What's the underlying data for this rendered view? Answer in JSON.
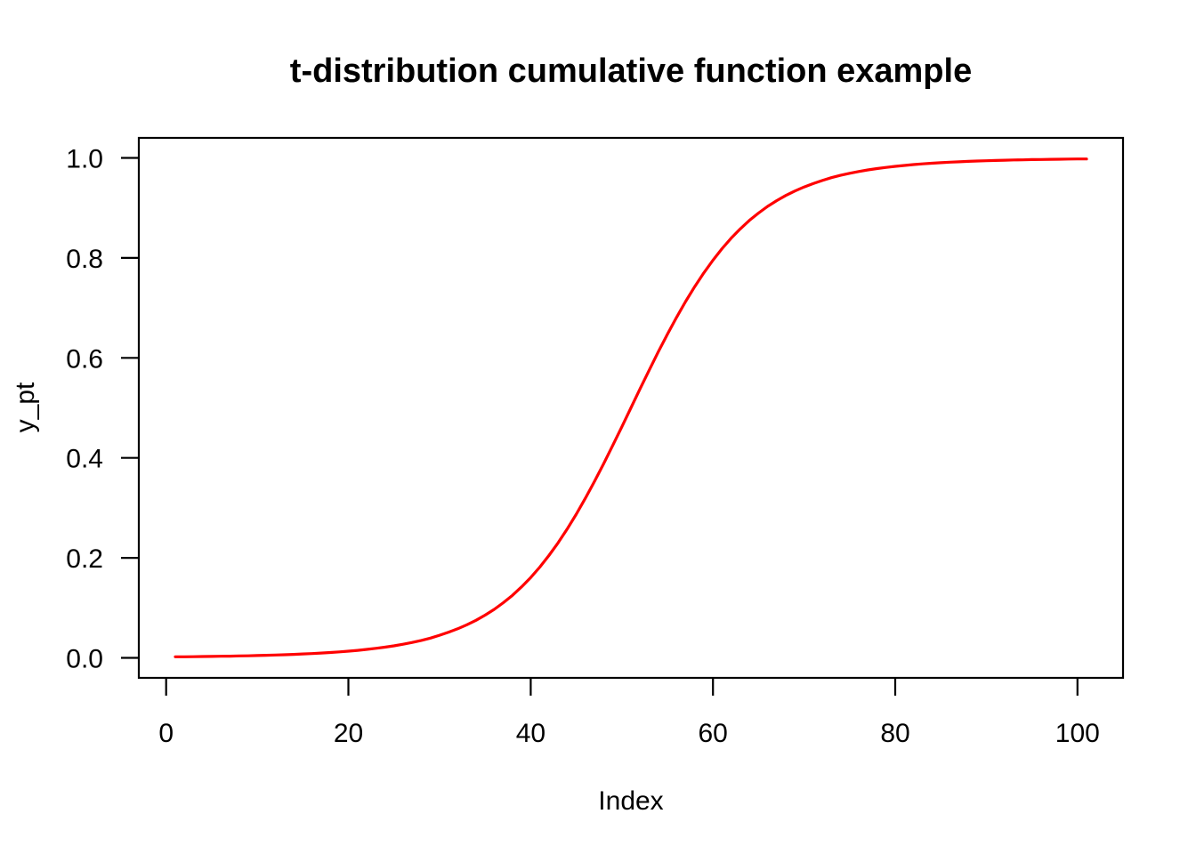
{
  "chart_data": {
    "type": "line",
    "title": "t-distribution cumulative function example",
    "xlabel": "Index",
    "ylabel": "y_pt",
    "x_ticks": [
      0,
      20,
      40,
      60,
      80,
      100
    ],
    "y_ticks": [
      "0.0",
      "0.2",
      "0.4",
      "0.6",
      "0.8",
      "1.0"
    ],
    "xlim": [
      -3,
      105
    ],
    "ylim": [
      -0.04,
      1.04
    ],
    "grid": false,
    "legend_position": "none",
    "colors": {
      "line": "#FF0000",
      "axis": "#000000",
      "background": "#FFFFFF"
    },
    "line_width": 3.2,
    "series": [
      {
        "name": "y_pt",
        "color": "#FF0000",
        "x_start": 1,
        "x_step": 1,
        "values": [
          0.0021,
          0.0022,
          0.0024,
          0.0027,
          0.0029,
          0.0032,
          0.0035,
          0.0039,
          0.0042,
          0.0047,
          0.0052,
          0.0057,
          0.0063,
          0.007,
          0.0078,
          0.0086,
          0.0096,
          0.0107,
          0.012,
          0.0134,
          0.015,
          0.0169,
          0.019,
          0.0214,
          0.0241,
          0.0272,
          0.0308,
          0.0349,
          0.0396,
          0.0452,
          0.0514,
          0.0583,
          0.0662,
          0.0752,
          0.0854,
          0.097,
          0.1103,
          0.1252,
          0.142,
          0.1607,
          0.1816,
          0.2046,
          0.23,
          0.2575,
          0.2873,
          0.3192,
          0.3528,
          0.3881,
          0.4247,
          0.4621,
          0.5,
          0.5379,
          0.5753,
          0.6119,
          0.6472,
          0.6808,
          0.7127,
          0.7425,
          0.77,
          0.7954,
          0.8184,
          0.8393,
          0.858,
          0.8748,
          0.8897,
          0.903,
          0.9146,
          0.9248,
          0.9338,
          0.9417,
          0.9486,
          0.9548,
          0.9604,
          0.9651,
          0.9692,
          0.9728,
          0.9759,
          0.9786,
          0.981,
          0.9831,
          0.9849,
          0.9866,
          0.988,
          0.9893,
          0.9904,
          0.9914,
          0.9922,
          0.993,
          0.9937,
          0.9943,
          0.9948,
          0.9953,
          0.9958,
          0.9961,
          0.9965,
          0.9968,
          0.9971,
          0.9973,
          0.9976,
          0.9978,
          0.9979
        ]
      }
    ]
  }
}
